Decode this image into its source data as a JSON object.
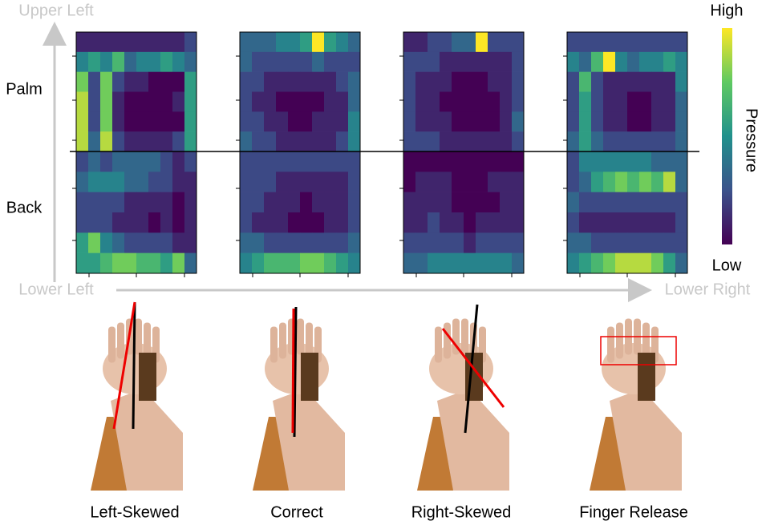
{
  "figure": {
    "axis_labels": {
      "upper_left": "Upper Left",
      "lower_left": "Lower Left",
      "lower_right": "Lower Right"
    },
    "row_labels": [
      "Palm",
      "Back"
    ],
    "colorbar": {
      "title": "Pressure",
      "high": "High",
      "low": "Low"
    },
    "panels": [
      {
        "caption": "Left-Skewed",
        "palm": [
          [
            2,
            2,
            2,
            2,
            2,
            2,
            2,
            2,
            2,
            3
          ],
          [
            5,
            6,
            5,
            7,
            4,
            5,
            5,
            6,
            5,
            4
          ],
          [
            8,
            3,
            8,
            3,
            2,
            2,
            1,
            1,
            1,
            6
          ],
          [
            9,
            3,
            8,
            2,
            1,
            1,
            1,
            1,
            2,
            6
          ],
          [
            9,
            3,
            8,
            2,
            1,
            1,
            1,
            1,
            1,
            6
          ],
          [
            9,
            4,
            9,
            3,
            2,
            2,
            2,
            2,
            3,
            6
          ]
        ],
        "back": [
          [
            3,
            4,
            3,
            4,
            4,
            4,
            4,
            3,
            2,
            3
          ],
          [
            4,
            5,
            5,
            5,
            4,
            4,
            3,
            3,
            2,
            2
          ],
          [
            3,
            3,
            3,
            3,
            2,
            2,
            2,
            2,
            1,
            2
          ],
          [
            3,
            3,
            3,
            2,
            2,
            2,
            1,
            2,
            1,
            2
          ],
          [
            6,
            8,
            5,
            4,
            3,
            3,
            3,
            3,
            2,
            2
          ],
          [
            6,
            6,
            7,
            8,
            8,
            7,
            7,
            6,
            8,
            4
          ]
        ]
      },
      {
        "caption": "Correct",
        "palm": [
          [
            4,
            4,
            4,
            5,
            5,
            6,
            10,
            6,
            5,
            4
          ],
          [
            4,
            3,
            3,
            3,
            3,
            3,
            4,
            3,
            3,
            3
          ],
          [
            3,
            3,
            2,
            2,
            2,
            2,
            2,
            2,
            3,
            4
          ],
          [
            3,
            2,
            2,
            1,
            1,
            1,
            1,
            2,
            2,
            4
          ],
          [
            3,
            3,
            2,
            2,
            1,
            1,
            2,
            2,
            2,
            5
          ],
          [
            4,
            3,
            3,
            2,
            2,
            2,
            2,
            2,
            3,
            5
          ]
        ],
        "back": [
          [
            3,
            3,
            3,
            3,
            3,
            3,
            3,
            3,
            3,
            3
          ],
          [
            3,
            3,
            3,
            2,
            2,
            2,
            2,
            2,
            2,
            3
          ],
          [
            3,
            3,
            2,
            2,
            2,
            1,
            2,
            2,
            2,
            3
          ],
          [
            3,
            2,
            2,
            2,
            1,
            1,
            1,
            2,
            2,
            3
          ],
          [
            4,
            4,
            3,
            3,
            3,
            3,
            3,
            3,
            3,
            4
          ],
          [
            5,
            6,
            7,
            7,
            7,
            8,
            8,
            7,
            6,
            5
          ]
        ]
      },
      {
        "caption": "Right-Skewed",
        "palm": [
          [
            2,
            2,
            3,
            3,
            4,
            4,
            10,
            3,
            3,
            3
          ],
          [
            3,
            3,
            3,
            2,
            2,
            2,
            2,
            2,
            2,
            3
          ],
          [
            3,
            2,
            2,
            2,
            1,
            1,
            1,
            2,
            2,
            3
          ],
          [
            3,
            2,
            2,
            1,
            1,
            1,
            1,
            1,
            2,
            3
          ],
          [
            3,
            2,
            2,
            2,
            1,
            1,
            1,
            1,
            2,
            4
          ],
          [
            3,
            3,
            3,
            2,
            2,
            2,
            2,
            2,
            2,
            3
          ]
        ],
        "back": [
          [
            1,
            1,
            1,
            1,
            1,
            1,
            1,
            1,
            1,
            1
          ],
          [
            1,
            2,
            2,
            2,
            1,
            1,
            1,
            2,
            2,
            2
          ],
          [
            2,
            2,
            2,
            2,
            1,
            1,
            1,
            1,
            2,
            2
          ],
          [
            2,
            2,
            3,
            2,
            2,
            1,
            2,
            2,
            2,
            2
          ],
          [
            3,
            3,
            3,
            3,
            3,
            2,
            3,
            3,
            3,
            3
          ],
          [
            4,
            4,
            5,
            5,
            5,
            5,
            5,
            5,
            5,
            4
          ]
        ]
      },
      {
        "caption": "Finger Release",
        "palm": [
          [
            3,
            3,
            3,
            3,
            3,
            3,
            3,
            3,
            3,
            3
          ],
          [
            5,
            4,
            7,
            10,
            5,
            4,
            5,
            5,
            6,
            5
          ],
          [
            3,
            7,
            3,
            2,
            2,
            2,
            2,
            2,
            2,
            5
          ],
          [
            3,
            6,
            3,
            2,
            2,
            1,
            1,
            2,
            2,
            4
          ],
          [
            3,
            6,
            3,
            2,
            2,
            1,
            1,
            2,
            2,
            4
          ],
          [
            4,
            6,
            4,
            3,
            3,
            3,
            3,
            3,
            3,
            4
          ]
        ],
        "back": [
          [
            3,
            5,
            5,
            5,
            5,
            5,
            5,
            4,
            4,
            4
          ],
          [
            3,
            4,
            6,
            7,
            8,
            7,
            8,
            7,
            9,
            4
          ],
          [
            4,
            3,
            3,
            3,
            3,
            3,
            3,
            3,
            3,
            3
          ],
          [
            3,
            2,
            2,
            2,
            2,
            2,
            2,
            2,
            2,
            3
          ],
          [
            4,
            4,
            3,
            3,
            3,
            3,
            3,
            3,
            3,
            3
          ],
          [
            5,
            6,
            7,
            8,
            9,
            9,
            9,
            8,
            6,
            4
          ]
        ]
      }
    ]
  }
}
